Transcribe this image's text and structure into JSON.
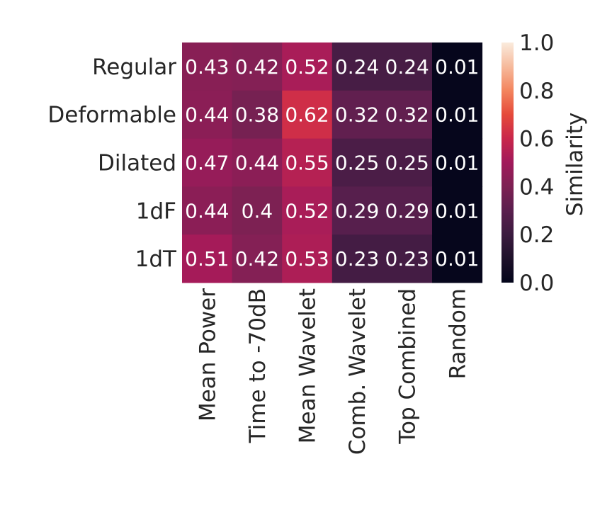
{
  "chart_data": {
    "type": "heatmap",
    "rows": [
      "Regular",
      "Deformable",
      "Dilated",
      "1dF",
      "1dT"
    ],
    "columns": [
      "Mean Power",
      "Time to -70dB",
      "Mean Wavelet",
      "Comb. Wavelet",
      "Top Combined",
      "Random"
    ],
    "values": [
      [
        0.43,
        0.42,
        0.52,
        0.24,
        0.24,
        0.01
      ],
      [
        0.44,
        0.38,
        0.62,
        0.32,
        0.32,
        0.01
      ],
      [
        0.47,
        0.44,
        0.55,
        0.25,
        0.25,
        0.01
      ],
      [
        0.44,
        0.4,
        0.52,
        0.29,
        0.29,
        0.01
      ],
      [
        0.51,
        0.42,
        0.53,
        0.23,
        0.23,
        0.01
      ]
    ],
    "cell_labels": [
      [
        "0.43",
        "0.42",
        "0.52",
        "0.24",
        "0.24",
        "0.01"
      ],
      [
        "0.44",
        "0.38",
        "0.62",
        "0.32",
        "0.32",
        "0.01"
      ],
      [
        "0.47",
        "0.44",
        "0.55",
        "0.25",
        "0.25",
        "0.01"
      ],
      [
        "0.44",
        "0.4",
        "0.52",
        "0.29",
        "0.29",
        "0.01"
      ],
      [
        "0.51",
        "0.42",
        "0.53",
        "0.23",
        "0.23",
        "0.01"
      ]
    ],
    "colorbar": {
      "label": "Similarity",
      "range": [
        0.0,
        1.0
      ],
      "ticks": [
        "0.0",
        "0.2",
        "0.4",
        "0.6",
        "0.8",
        "1.0"
      ],
      "colormap": "rocket"
    },
    "grid": false
  }
}
